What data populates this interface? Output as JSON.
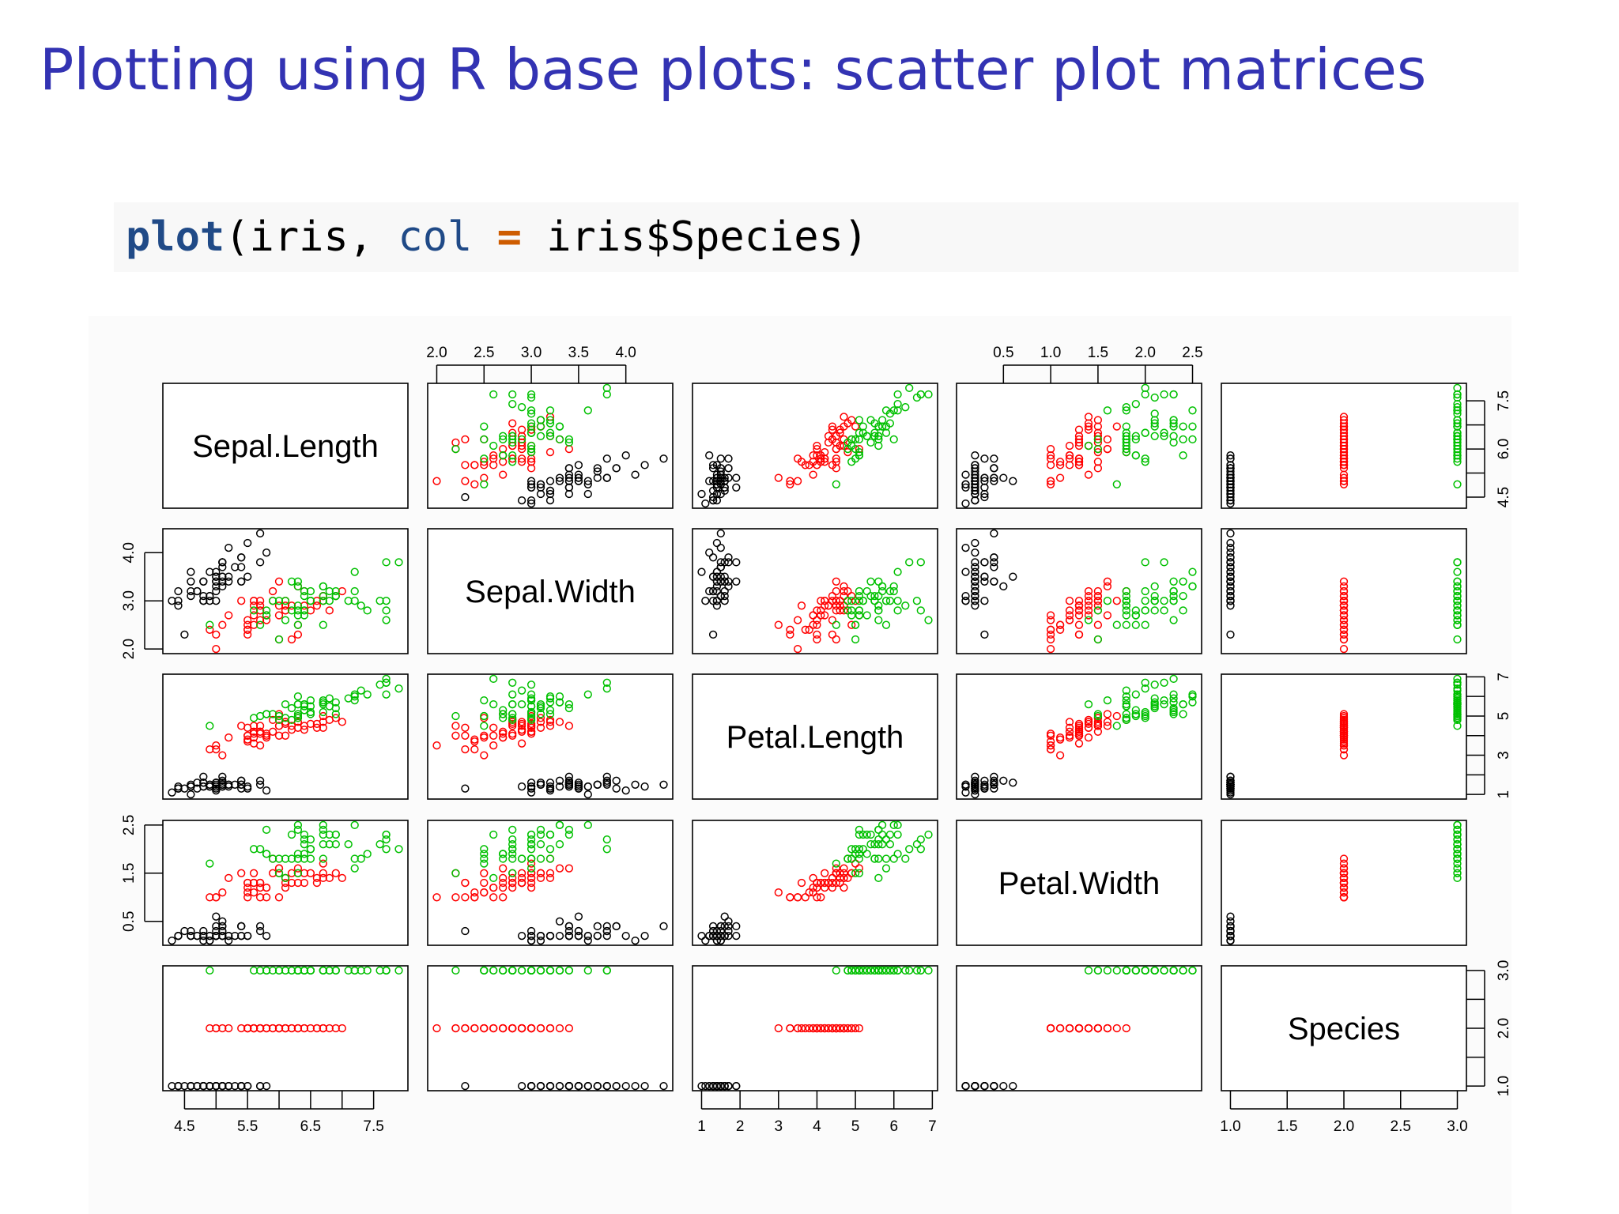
{
  "slide": {
    "title": "Plotting using R base plots: scatter plot matrices",
    "code": {
      "fn": "plot",
      "open": "(iris, ",
      "arg": "col",
      "eq": " = ",
      "rest": "iris$Species)"
    }
  },
  "chart_data": {
    "type": "scatter",
    "variables": [
      "Sepal.Length",
      "Sepal.Width",
      "Petal.Length",
      "Petal.Width",
      "Species"
    ],
    "ranges": [
      [
        4.3,
        7.9
      ],
      [
        2.0,
        4.4
      ],
      [
        1.0,
        6.9
      ],
      [
        0.1,
        2.5
      ],
      [
        1,
        3
      ]
    ],
    "ticks": [
      [
        4.5,
        5.5,
        6.5,
        7.5
      ],
      [
        2.0,
        2.5,
        3.0,
        3.5,
        4.0
      ],
      [
        1,
        2,
        3,
        4,
        5,
        6,
        7
      ],
      [
        0.5,
        1.0,
        1.5,
        2.0,
        2.5
      ],
      [
        1.0,
        1.5,
        2.0,
        2.5,
        3.0
      ]
    ],
    "tick_labels": [
      [
        "4.5",
        "5.5",
        "6.5",
        "7.5"
      ],
      [
        "2.0",
        "2.5",
        "3.0",
        "3.5",
        "4.0"
      ],
      [
        "1",
        "2",
        "3",
        "4",
        "5",
        "6",
        "7"
      ],
      [
        "0.5",
        "1.0",
        "1.5",
        "2.0",
        "2.5"
      ],
      [
        "1.0",
        "1.5",
        "2.0",
        "2.5",
        "3.0"
      ]
    ],
    "minor_ticks": [
      [
        5.0,
        6.0,
        7.0
      ],
      [],
      [],
      [],
      [
        1.5,
        2.5
      ]
    ],
    "right_axis_ticks": [
      [
        4.5,
        6.0,
        7.5
      ],
      [],
      [
        1,
        3,
        5,
        7
      ],
      [],
      [
        1.0,
        2.0,
        3.0
      ]
    ],
    "right_axis_labels": [
      [
        "4.5",
        "6.0",
        "7.5"
      ],
      [],
      [
        "1",
        "3",
        "5",
        "7"
      ],
      [],
      [
        "1.0",
        "2.0",
        "3.0"
      ]
    ],
    "left_axis_ticks": [
      [],
      [
        2.0,
        3.0,
        4.0
      ],
      [],
      [
        0.5,
        1.5,
        2.5
      ],
      []
    ],
    "left_axis_labels": [
      [],
      [
        "2.0",
        "3.0",
        "4.0"
      ],
      [],
      [
        "0.5",
        "1.5",
        "2.5"
      ],
      []
    ],
    "species_colors": {
      "setosa": "#000000",
      "versicolor": "#ff0000",
      "virginica": "#00c000"
    },
    "data": "5.1,3.5,1.4,0.2,1;4.9,3.0,1.4,0.2,1;4.7,3.2,1.3,0.2,1;4.6,3.1,1.5,0.2,1;5.0,3.6,1.4,0.2,1;5.4,3.9,1.7,0.4,1;4.6,3.4,1.4,0.3,1;5.0,3.4,1.5,0.2,1;4.4,2.9,1.4,0.2,1;4.9,3.1,1.5,0.1,1;5.4,3.7,1.5,0.2,1;4.8,3.4,1.6,0.2,1;4.8,3.0,1.4,0.1,1;4.3,3.0,1.1,0.1,1;5.8,4.0,1.2,0.2,1;5.7,4.4,1.5,0.4,1;5.4,3.9,1.3,0.4,1;5.1,3.5,1.4,0.3,1;5.7,3.8,1.7,0.3,1;5.1,3.8,1.5,0.3,1;5.4,3.4,1.7,0.2,1;5.1,3.7,1.5,0.4,1;4.6,3.6,1.0,0.2,1;5.1,3.3,1.7,0.5,1;4.8,3.4,1.9,0.2,1;5.0,3.0,1.6,0.2,1;5.0,3.4,1.6,0.4,1;5.2,3.5,1.5,0.2,1;5.2,3.4,1.4,0.2,1;4.7,3.2,1.6,0.2,1;4.8,3.1,1.6,0.2,1;5.4,3.4,1.5,0.4,1;5.2,4.1,1.5,0.1,1;5.5,4.2,1.4,0.2,1;4.9,3.1,1.5,0.2,1;5.0,3.2,1.2,0.2,1;5.5,3.5,1.3,0.2,1;4.9,3.6,1.4,0.1,1;4.4,3.0,1.3,0.2,1;5.1,3.4,1.5,0.2,1;5.0,3.5,1.3,0.3,1;4.5,2.3,1.3,0.3,1;4.4,3.2,1.3,0.2,1;5.0,3.5,1.6,0.6,1;5.1,3.8,1.9,0.4,1;4.8,3.0,1.4,0.3,1;5.1,3.8,1.6,0.2,1;4.6,3.2,1.4,0.2,1;5.3,3.7,1.5,0.2,1;5.0,3.3,1.4,0.2,1;7.0,3.2,4.7,1.4,2;6.4,3.2,4.5,1.5,2;6.9,3.1,4.9,1.5,2;5.5,2.3,4.0,1.3,2;6.5,2.8,4.6,1.5,2;5.7,2.8,4.5,1.3,2;6.3,3.3,4.7,1.6,2;4.9,2.4,3.3,1.0,2;6.6,2.9,4.6,1.3,2;5.2,2.7,3.9,1.4,2;5.0,2.0,3.5,1.0,2;5.9,3.0,4.2,1.5,2;6.0,2.2,4.0,1.0,2;6.1,2.9,4.7,1.4,2;5.6,2.9,3.6,1.3,2;6.7,3.1,4.4,1.4,2;5.6,3.0,4.5,1.5,2;5.8,2.7,4.1,1.0,2;6.2,2.2,4.5,1.5,2;5.6,2.5,3.9,1.1,2;5.9,3.2,4.8,1.8,2;6.1,2.8,4.0,1.3,2;6.3,2.5,4.9,1.5,2;6.1,2.8,4.7,1.2,2;6.4,2.9,4.3,1.3,2;6.6,3.0,4.4,1.4,2;6.8,2.8,4.8,1.4,2;6.7,3.0,5.0,1.7,2;6.0,2.9,4.5,1.5,2;5.7,2.6,3.5,1.0,2;5.5,2.4,3.8,1.1,2;5.5,2.4,3.7,1.0,2;5.8,2.7,3.9,1.2,2;6.0,2.7,5.1,1.6,2;5.4,3.0,4.5,1.5,2;6.0,3.4,4.5,1.6,2;6.7,3.1,4.7,1.5,2;6.3,2.3,4.4,1.3,2;5.6,3.0,4.1,1.3,2;5.5,2.5,4.0,1.3,2;5.5,2.6,4.4,1.2,2;6.1,3.0,4.6,1.4,2;5.8,2.6,4.0,1.2,2;5.0,2.3,3.3,1.0,2;5.6,2.7,4.2,1.3,2;5.7,3.0,4.2,1.2,2;5.7,2.9,4.2,1.3,2;6.2,2.9,4.3,1.3,2;5.1,2.5,3.0,1.1,2;5.7,2.8,4.1,1.3,2;6.3,3.3,6.0,2.5,3;5.8,2.7,5.1,1.9,3;7.1,3.0,5.9,2.1,3;6.3,2.9,5.6,1.8,3;6.5,3.0,5.8,2.2,3;7.6,3.0,6.6,2.1,3;4.9,2.5,4.5,1.7,3;7.3,2.9,6.3,1.8,3;6.7,2.5,5.8,1.8,3;7.2,3.6,6.1,2.5,3;6.5,3.2,5.1,2.0,3;6.4,2.7,5.3,1.9,3;6.8,3.0,5.5,2.1,3;5.7,2.5,5.0,2.0,3;5.8,2.8,5.1,2.4,3;6.4,3.2,5.3,2.3,3;6.5,3.0,5.5,1.8,3;7.7,3.8,6.7,2.2,3;7.7,2.6,6.9,2.3,3;6.0,2.2,5.0,1.5,3;6.9,3.2,5.7,2.3,3;5.6,2.8,4.9,2.0,3;7.7,2.8,6.7,2.0,3;6.3,2.7,4.9,1.8,3;6.7,3.3,5.7,2.1,3;7.2,3.2,6.0,1.8,3;6.2,2.8,4.8,1.8,3;6.1,3.0,4.9,1.8,3;6.4,2.8,5.6,2.1,3;7.2,3.0,5.8,1.6,3;7.4,2.8,6.1,1.9,3;7.9,3.8,6.4,2.0,3;6.4,2.8,5.6,2.2,3;6.3,2.8,5.1,1.5,3;6.1,2.6,5.6,1.4,3;7.7,3.0,6.1,2.3,3;6.3,3.4,5.6,2.4,3;6.4,3.1,5.5,1.8,3;6.0,3.0,4.8,1.8,3;6.9,3.1,5.4,2.1,3;6.7,3.1,5.6,2.4,3;6.9,3.1,5.1,2.3,3;5.8,2.7,5.1,1.9,3;6.8,3.2,5.9,2.3,3;6.7,3.3,5.7,2.5,3;6.7,3.0,5.2,2.3,3;6.3,2.5,5.0,1.9,3;6.5,3.0,5.2,2.0,3;6.2,3.4,5.4,2.3,3;5.9,3.0,5.1,1.8,3"
  }
}
